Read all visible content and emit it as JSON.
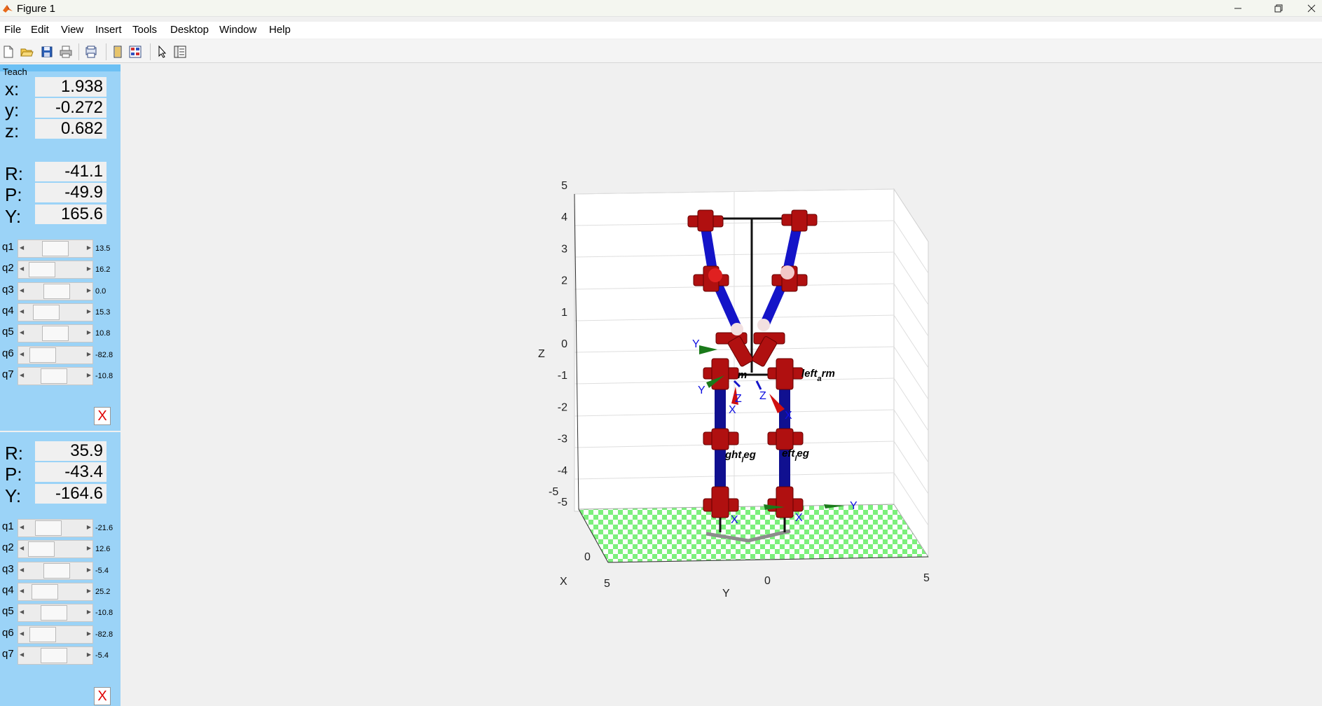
{
  "window": {
    "title": "Figure 1"
  },
  "menu": [
    "File",
    "Edit",
    "View",
    "Insert",
    "Tools",
    "Desktop",
    "Window",
    "Help"
  ],
  "toolbar_icons": [
    "new-figure-icon",
    "open-file-icon",
    "save-icon",
    "print-icon",
    "print-preview-icon",
    "dock-icon",
    "property-editor-icon",
    "pointer-icon",
    "plot-browser-icon"
  ],
  "teach": {
    "label": "Teach",
    "position": [
      {
        "label": "x:",
        "value": "1.938"
      },
      {
        "label": "y:",
        "value": "-0.272"
      },
      {
        "label": "z:",
        "value": "0.682"
      }
    ],
    "orientation1": [
      {
        "label": "R:",
        "value": "-41.1"
      },
      {
        "label": "P:",
        "value": "-49.9"
      },
      {
        "label": "Y:",
        "value": "165.6"
      }
    ],
    "joints1": [
      {
        "label": "q1",
        "value": "13.5",
        "fraction": 0.5
      },
      {
        "label": "q2",
        "value": "16.2",
        "fraction": 0.06
      },
      {
        "label": "q3",
        "value": "0.0",
        "fraction": 0.55
      },
      {
        "label": "q4",
        "value": "15.3",
        "fraction": 0.2
      },
      {
        "label": "q5",
        "value": "10.8",
        "fraction": 0.5
      },
      {
        "label": "q6",
        "value": "-82.8",
        "fraction": 0.1
      },
      {
        "label": "q7",
        "value": "-10.8",
        "fraction": 0.45
      }
    ],
    "close_label": "X",
    "orientation2": [
      {
        "label": "R:",
        "value": "35.9"
      },
      {
        "label": "P:",
        "value": "-43.4"
      },
      {
        "label": "Y:",
        "value": "-164.6"
      }
    ],
    "joints2": [
      {
        "label": "q1",
        "value": "-21.6",
        "fraction": 0.28
      },
      {
        "label": "q2",
        "value": "12.6",
        "fraction": 0.05
      },
      {
        "label": "q3",
        "value": "-5.4",
        "fraction": 0.55
      },
      {
        "label": "q4",
        "value": "25.2",
        "fraction": 0.15
      },
      {
        "label": "q5",
        "value": "-10.8",
        "fraction": 0.45
      },
      {
        "label": "q6",
        "value": "-82.8",
        "fraction": 0.1
      },
      {
        "label": "q7",
        "value": "-5.4",
        "fraction": 0.45
      }
    ]
  },
  "plot": {
    "zlabel": "Z",
    "xlabel": "X",
    "ylabel": "Y",
    "z_ticks": [
      "5",
      "4",
      "3",
      "2",
      "1",
      "0",
      "-1",
      "-2",
      "-3",
      "-4",
      "-5"
    ],
    "x_ticks": [
      "-5",
      "0",
      "5"
    ],
    "y_ticks": [
      "5",
      "0",
      "5"
    ],
    "link_labels": {
      "left_arm": "left",
      "left_arm_sub": "a",
      "left_arm_end": "rm",
      "right_arm_frag": "m",
      "right_leg": "ght",
      "right_leg_sub": "l",
      "right_leg_end": "eg",
      "left_leg": "eft",
      "left_leg_sub": "l",
      "left_leg_end": "eg"
    },
    "frame_labels": [
      "Y",
      "Y",
      "Z",
      "Z",
      "X",
      "X",
      "X",
      "X",
      "Y"
    ],
    "colors": {
      "link": "#1414c8",
      "joint": "#b01010",
      "floor_a": "#7cf07c",
      "floor_b": "#ffffff",
      "panel": "#9bd3f7"
    }
  }
}
